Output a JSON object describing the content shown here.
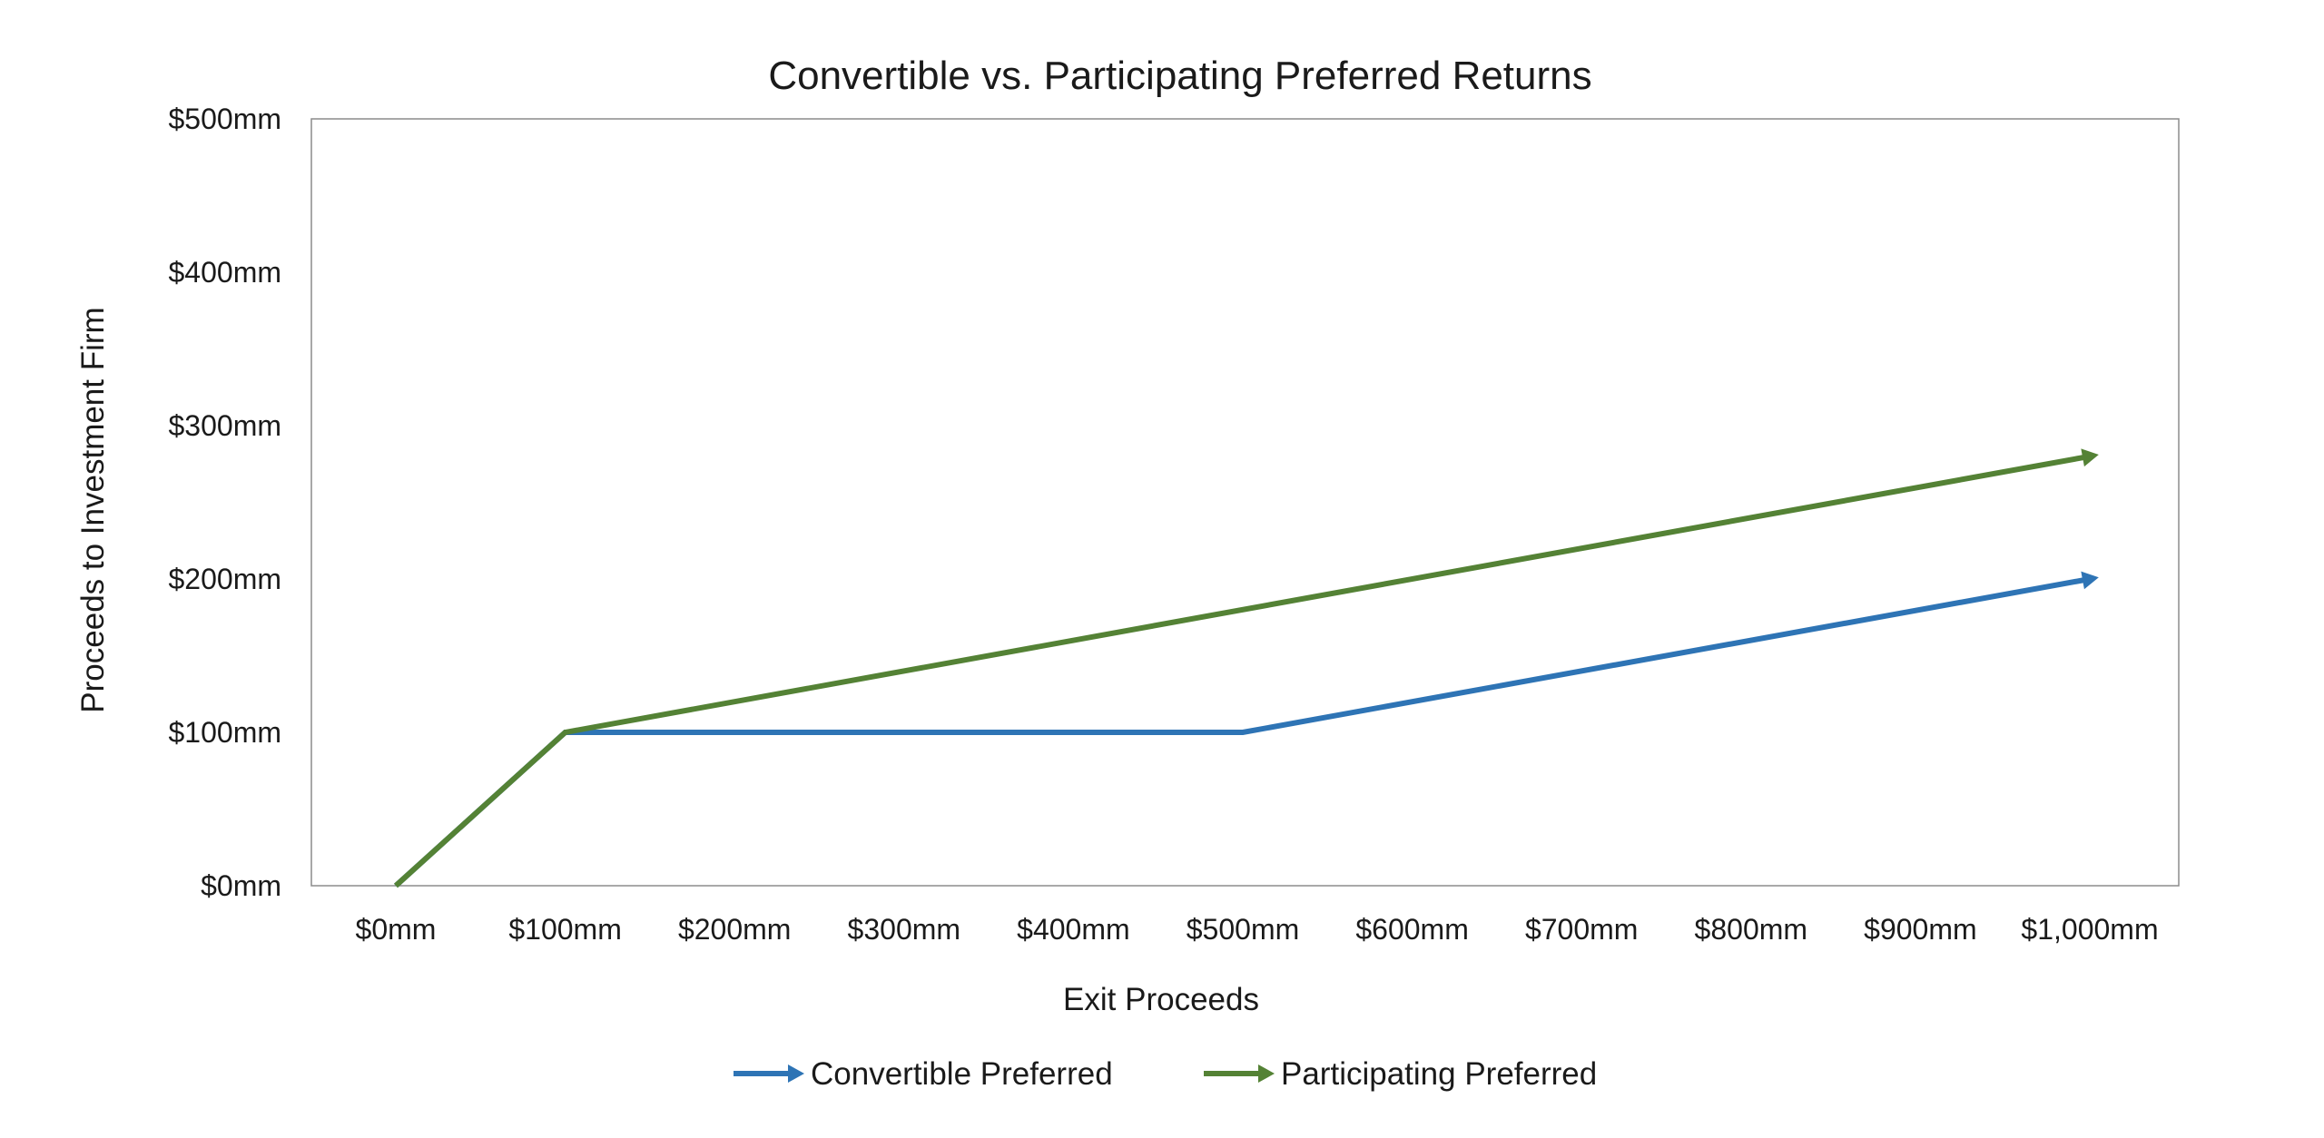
{
  "chart_data": {
    "type": "line",
    "title": "Convertible vs. Participating Preferred Returns",
    "xlabel": "Exit Proceeds",
    "ylabel": "Proceeds to Investment Firm",
    "x_categories": [
      "$0mm",
      "$100mm",
      "$200mm",
      "$300mm",
      "$400mm",
      "$500mm",
      "$600mm",
      "$700mm",
      "$800mm",
      "$900mm",
      "$1,000mm"
    ],
    "xlim": [
      0,
      1000
    ],
    "ylim": [
      0,
      500
    ],
    "y_ticks": [
      {
        "value": 0,
        "label": "$0mm"
      },
      {
        "value": 100,
        "label": "$100mm"
      },
      {
        "value": 200,
        "label": "$200mm"
      },
      {
        "value": 300,
        "label": "$300mm"
      },
      {
        "value": 400,
        "label": "$400mm"
      },
      {
        "value": 500,
        "label": "$500mm"
      }
    ],
    "grid": false,
    "legend_position": "bottom",
    "series": [
      {
        "name": "Convertible Preferred",
        "color": "#2e74b5",
        "end_marker": "arrow",
        "points": [
          {
            "x": 0,
            "y": 0
          },
          {
            "x": 100,
            "y": 100
          },
          {
            "x": 500,
            "y": 100
          },
          {
            "x": 1000,
            "y": 200
          }
        ]
      },
      {
        "name": "Participating Preferred",
        "color": "#548235",
        "end_marker": "arrow",
        "points": [
          {
            "x": 0,
            "y": 0
          },
          {
            "x": 100,
            "y": 100
          },
          {
            "x": 1000,
            "y": 280
          }
        ]
      }
    ]
  }
}
